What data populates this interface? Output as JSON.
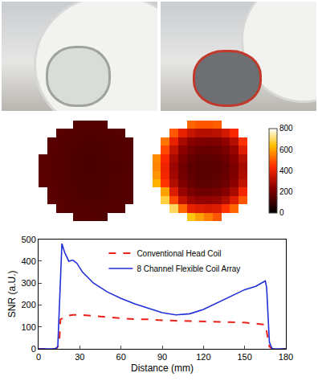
{
  "chart_data": [
    {
      "type": "heatmap",
      "tick_labels": false,
      "colorbar_range": [
        0,
        800
      ],
      "z": [
        [
          null,
          null,
          null,
          null,
          140,
          145,
          140,
          135,
          null,
          null,
          null,
          null
        ],
        [
          null,
          null,
          150,
          145,
          140,
          140,
          138,
          140,
          142,
          145,
          null,
          null
        ],
        [
          null,
          155,
          148,
          142,
          138,
          135,
          135,
          136,
          140,
          143,
          148,
          null
        ],
        [
          null,
          152,
          145,
          140,
          135,
          132,
          132,
          134,
          138,
          142,
          146,
          null
        ],
        [
          155,
          150,
          143,
          137,
          133,
          130,
          130,
          132,
          136,
          140,
          145,
          null
        ],
        [
          154,
          148,
          142,
          136,
          132,
          128,
          128,
          131,
          135,
          139,
          144,
          null
        ],
        [
          153,
          148,
          141,
          135,
          131,
          128,
          128,
          130,
          134,
          138,
          143,
          null
        ],
        [
          154,
          149,
          142,
          136,
          132,
          129,
          129,
          131,
          135,
          139,
          144,
          null
        ],
        [
          null,
          150,
          144,
          138,
          134,
          131,
          131,
          133,
          137,
          141,
          146,
          null
        ],
        [
          null,
          152,
          146,
          141,
          137,
          134,
          134,
          136,
          139,
          143,
          148,
          null
        ],
        [
          null,
          null,
          150,
          145,
          141,
          138,
          138,
          140,
          143,
          147,
          null,
          null
        ],
        [
          null,
          null,
          null,
          null,
          145,
          142,
          142,
          144,
          null,
          null,
          null,
          null
        ]
      ]
    },
    {
      "type": "heatmap",
      "tick_labels": false,
      "colorbar_range": [
        0,
        800
      ],
      "colorbar_ticks": [
        0,
        200,
        400,
        600,
        800
      ],
      "z": [
        [
          null,
          null,
          null,
          null,
          650,
          600,
          550,
          500,
          null,
          null,
          null,
          null
        ],
        [
          null,
          null,
          700,
          520,
          400,
          380,
          370,
          380,
          450,
          520,
          null,
          null
        ],
        [
          null,
          680,
          480,
          330,
          270,
          250,
          250,
          260,
          300,
          380,
          500,
          null
        ],
        [
          null,
          600,
          380,
          260,
          210,
          190,
          190,
          200,
          230,
          290,
          420,
          null
        ],
        [
          620,
          450,
          300,
          220,
          180,
          160,
          160,
          170,
          190,
          240,
          330,
          null
        ],
        [
          580,
          420,
          280,
          200,
          165,
          150,
          150,
          160,
          180,
          220,
          300,
          null
        ],
        [
          560,
          410,
          270,
          195,
          160,
          150,
          150,
          155,
          175,
          215,
          290,
          null
        ],
        [
          570,
          430,
          290,
          210,
          175,
          160,
          160,
          165,
          185,
          230,
          310,
          null
        ],
        [
          null,
          480,
          330,
          240,
          200,
          180,
          180,
          185,
          210,
          260,
          380,
          null
        ],
        [
          null,
          540,
          400,
          290,
          240,
          220,
          215,
          220,
          250,
          310,
          450,
          null
        ],
        [
          null,
          null,
          500,
          400,
          340,
          310,
          310,
          320,
          360,
          430,
          null,
          null
        ],
        [
          null,
          null,
          null,
          null,
          520,
          500,
          500,
          510,
          null,
          null,
          null,
          null
        ]
      ]
    },
    {
      "type": "line",
      "xlabel": "Distance (mm)",
      "ylabel": "SNR (a.U.)",
      "xlim": [
        0,
        180
      ],
      "xticks": [
        0,
        30,
        60,
        90,
        120,
        150,
        180
      ],
      "ylim": [
        0,
        500
      ],
      "yticks": [
        0,
        100,
        200,
        300,
        400,
        500
      ],
      "grid": false,
      "legend": "top",
      "series": [
        {
          "name": "Conventional Head Coil",
          "color": "#e8221b",
          "line_style": "dashed",
          "x": [
            0,
            13,
            15,
            16,
            18,
            20,
            25,
            30,
            40,
            50,
            60,
            70,
            80,
            90,
            100,
            110,
            120,
            130,
            140,
            150,
            160,
            165,
            166,
            168,
            170,
            180
          ],
          "values": [
            0,
            0,
            20,
            135,
            140,
            150,
            155,
            155,
            150,
            145,
            140,
            135,
            135,
            130,
            128,
            127,
            125,
            125,
            122,
            120,
            115,
            110,
            80,
            10,
            0,
            0
          ]
        },
        {
          "name": "8 Channel Flexible Coil Array",
          "color": "#1f2fd6",
          "line_style": "solid",
          "x": [
            0,
            12,
            14,
            16,
            17,
            19,
            22,
            25,
            28,
            32,
            40,
            50,
            60,
            70,
            80,
            90,
            100,
            110,
            120,
            130,
            140,
            150,
            158,
            162,
            165,
            166,
            167,
            168,
            170,
            180
          ],
          "values": [
            0,
            0,
            10,
            300,
            480,
            440,
            400,
            405,
            390,
            350,
            300,
            260,
            230,
            205,
            185,
            165,
            155,
            160,
            180,
            210,
            240,
            270,
            285,
            300,
            310,
            280,
            150,
            30,
            0,
            0
          ]
        }
      ]
    }
  ]
}
